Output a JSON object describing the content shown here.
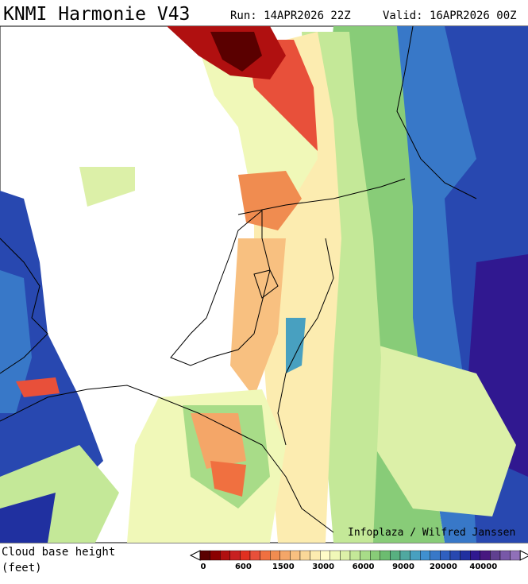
{
  "header": {
    "title": "KNMI Harmonie V43",
    "run": "Run: 14APR2026 22Z",
    "valid": "Valid: 16APR2026 00Z"
  },
  "credit": "Infoplaza / Wilfred Janssen",
  "legend": {
    "title": "Cloud base height",
    "units": "(feet)",
    "ticks": [
      "0",
      "600",
      "1500",
      "3000",
      "6000",
      "9000",
      "20000",
      "40000"
    ]
  }
}
